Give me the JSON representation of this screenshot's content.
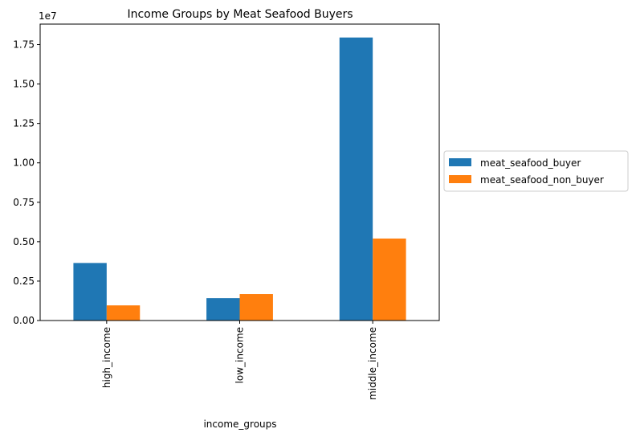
{
  "chart_data": {
    "type": "bar",
    "title": "Income Groups by Meat Seafood Buyers",
    "xlabel": "income_groups",
    "ylabel": "",
    "y_offset_label": "1e7",
    "categories": [
      "high_income",
      "low_income",
      "middle_income"
    ],
    "series": [
      {
        "name": "meat_seafood_buyer",
        "color": "#1f77b4",
        "values": [
          3650000,
          1420000,
          17950000
        ]
      },
      {
        "name": "meat_seafood_non_buyer",
        "color": "#ff7f0e",
        "values": [
          960000,
          1680000,
          5200000
        ]
      }
    ],
    "ylim": [
      0,
      18800000
    ],
    "yticks": [
      0,
      2500000,
      5000000,
      7500000,
      10000000,
      12500000,
      15000000,
      17500000
    ],
    "ytick_labels": [
      "0.00",
      "0.25",
      "0.50",
      "0.75",
      "1.00",
      "1.25",
      "1.50",
      "1.75"
    ],
    "grid": false,
    "legend_position": "outside-right"
  }
}
